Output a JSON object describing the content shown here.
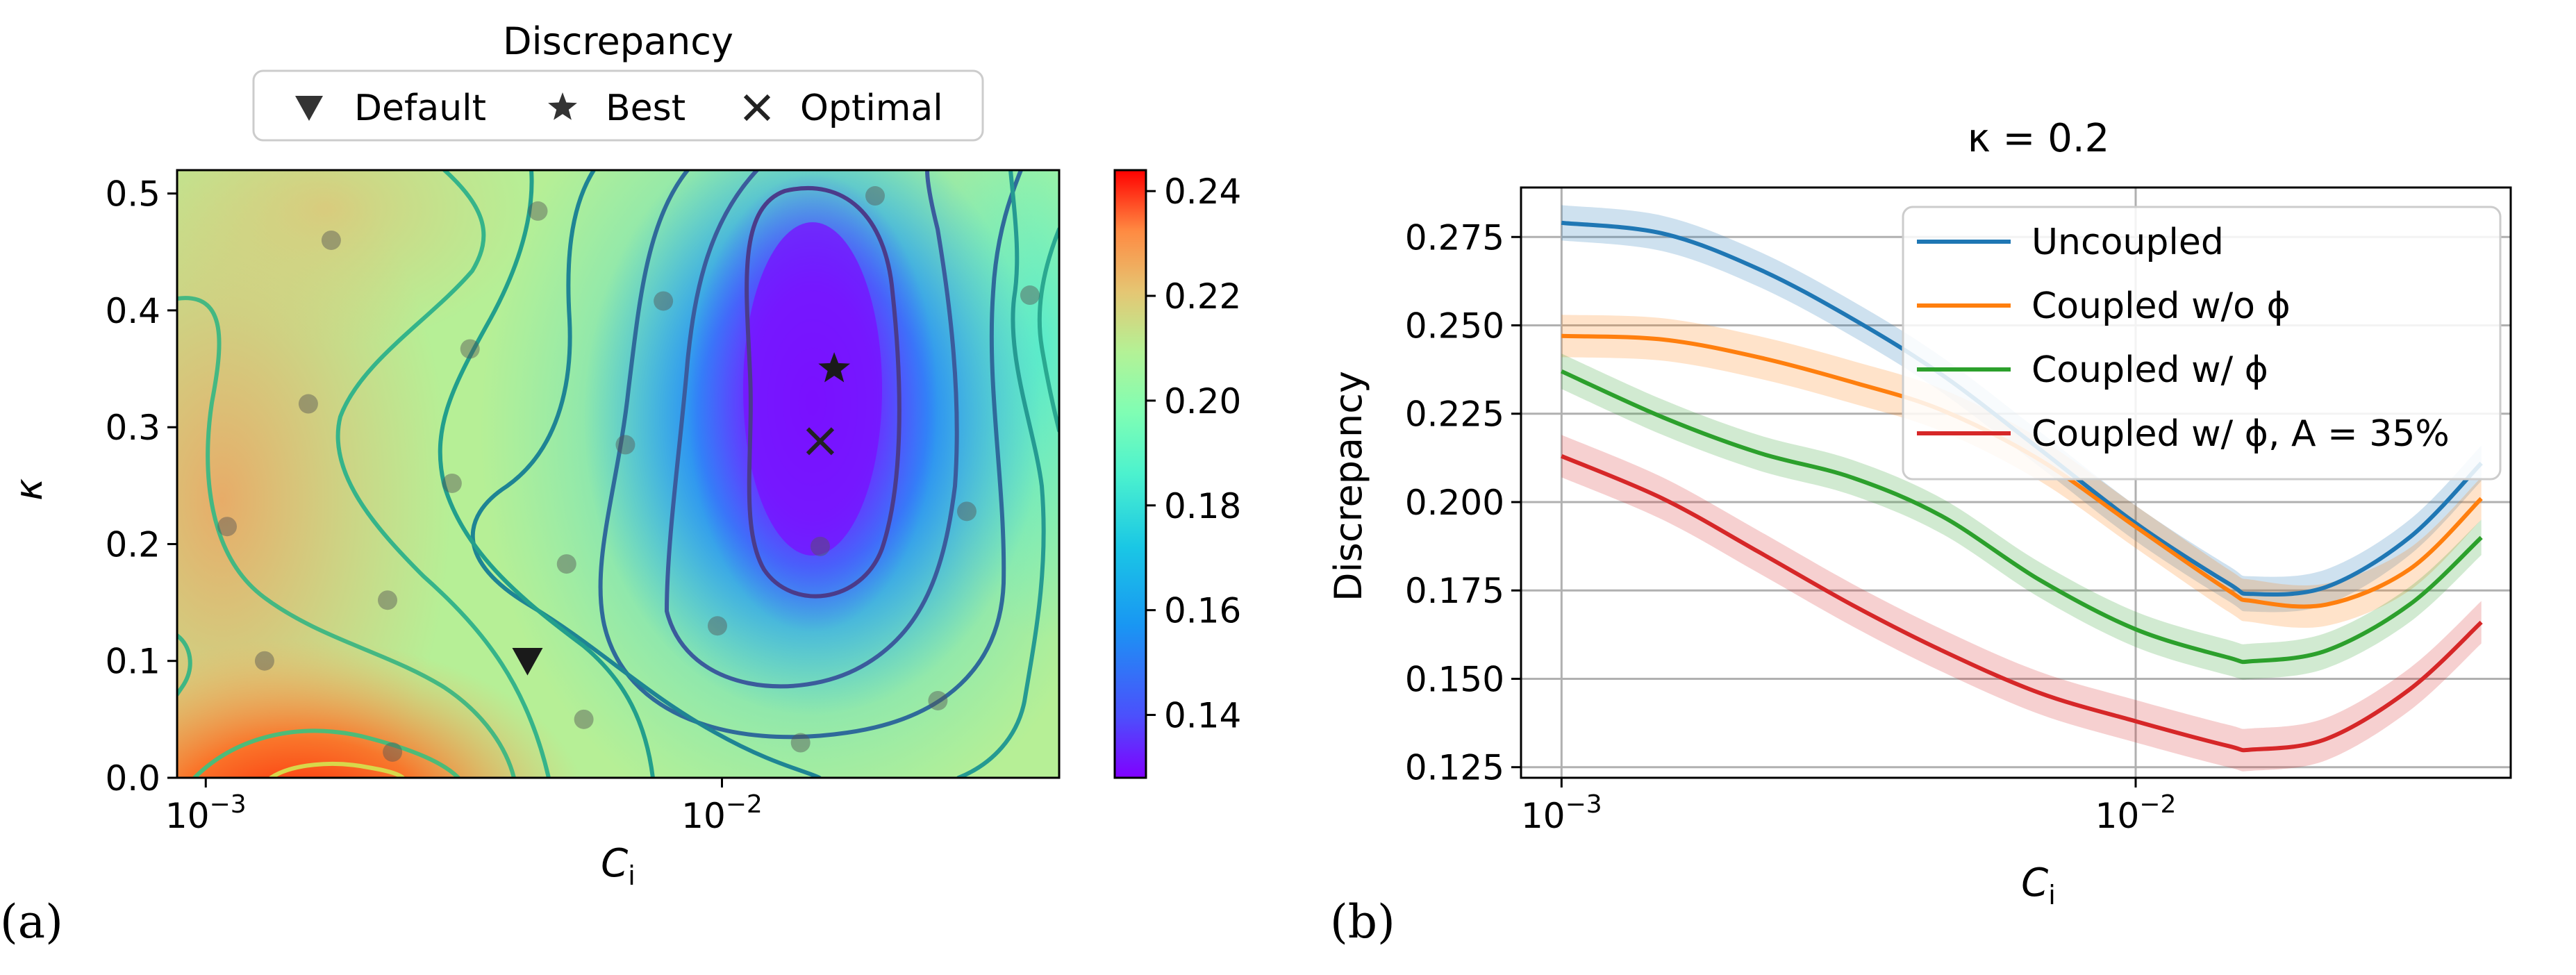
{
  "chart_data": [
    {
      "panel": "(a)",
      "type": "heatmap",
      "title": "",
      "xlabel": "C_i",
      "ylabel": "κ",
      "xscale": "log",
      "xlim": [
        0.00088,
        0.045
      ],
      "ylim": [
        0.0,
        0.52
      ],
      "xticks": [
        {
          "value": 0.001,
          "base": "10",
          "exp": "−3"
        },
        {
          "value": 0.01,
          "base": "10",
          "exp": "−2"
        }
      ],
      "yticks": [
        0.0,
        0.1,
        0.2,
        0.3,
        0.4,
        0.5
      ],
      "ytick_labels": [
        "0.0",
        "0.1",
        "0.2",
        "0.3",
        "0.4",
        "0.5"
      ],
      "colorbar": {
        "label": "Discrepancy",
        "range": [
          0.128,
          0.244
        ],
        "ticks": [
          0.14,
          0.16,
          0.18,
          0.2,
          0.22,
          0.24
        ],
        "tick_labels": [
          "0.14",
          "0.16",
          "0.18",
          "0.20",
          "0.22",
          "0.24"
        ],
        "colormap": "rainbow"
      },
      "legend": {
        "title": "Discrepancy",
        "placement": "top-center",
        "entries": [
          {
            "label": "Default",
            "marker": "triangle-down"
          },
          {
            "label": "Best",
            "marker": "star"
          },
          {
            "label": "Optimal",
            "marker": "x"
          }
        ]
      },
      "markers": {
        "default": {
          "x": 0.0042,
          "y": 0.1
        },
        "best": {
          "x": 0.0165,
          "y": 0.35
        },
        "optimal": {
          "x": 0.0155,
          "y": 0.288
        }
      },
      "sample_points": [
        {
          "x": 0.00175,
          "y": 0.46
        },
        {
          "x": 0.00158,
          "y": 0.32
        },
        {
          "x": 0.0011,
          "y": 0.215
        },
        {
          "x": 0.0013,
          "y": 0.1
        },
        {
          "x": 0.00225,
          "y": 0.152
        },
        {
          "x": 0.0023,
          "y": 0.022
        },
        {
          "x": 0.00325,
          "y": 0.367
        },
        {
          "x": 0.003,
          "y": 0.252
        },
        {
          "x": 0.0044,
          "y": 0.485
        },
        {
          "x": 0.005,
          "y": 0.183
        },
        {
          "x": 0.0054,
          "y": 0.05
        },
        {
          "x": 0.0065,
          "y": 0.285
        },
        {
          "x": 0.0077,
          "y": 0.408
        },
        {
          "x": 0.0098,
          "y": 0.13
        },
        {
          "x": 0.0142,
          "y": 0.03
        },
        {
          "x": 0.0155,
          "y": 0.198
        },
        {
          "x": 0.0198,
          "y": 0.498
        },
        {
          "x": 0.0262,
          "y": 0.066
        },
        {
          "x": 0.0298,
          "y": 0.228
        },
        {
          "x": 0.0395,
          "y": 0.413
        }
      ]
    },
    {
      "panel": "(b)",
      "type": "line",
      "title": "κ = 0.2",
      "xlabel": "C_i",
      "ylabel": "Discrepancy",
      "xscale": "log",
      "xlim": [
        0.00085,
        0.045
      ],
      "ylim": [
        0.122,
        0.289
      ],
      "xticks": [
        {
          "value": 0.001,
          "base": "10",
          "exp": "−3"
        },
        {
          "value": 0.01,
          "base": "10",
          "exp": "−2"
        }
      ],
      "yticks": [
        0.125,
        0.15,
        0.175,
        0.2,
        0.225,
        0.25,
        0.275
      ],
      "ytick_labels": [
        "0.125",
        "0.150",
        "0.175",
        "0.200",
        "0.225",
        "0.250",
        "0.275"
      ],
      "grid": true,
      "legend_placement": "top-right",
      "x": [
        0.001,
        0.0015,
        0.0022,
        0.0032,
        0.0046,
        0.0068,
        0.01,
        0.0145,
        0.016,
        0.0215,
        0.03,
        0.04
      ],
      "series": [
        {
          "name": "Uncoupled",
          "color": "#1f77b4",
          "values": [
            0.279,
            0.276,
            0.266,
            0.252,
            0.236,
            0.215,
            0.194,
            0.177,
            0.174,
            0.176,
            0.19,
            0.211
          ],
          "band": 0.005
        },
        {
          "name": "Coupled w/o ϕ",
          "color": "#ff7f0e",
          "values": [
            0.247,
            0.246,
            0.241,
            0.234,
            0.226,
            0.212,
            0.193,
            0.175,
            0.172,
            0.171,
            0.181,
            0.201
          ],
          "band": 0.006
        },
        {
          "name": "Coupled w/ ϕ",
          "color": "#2ca02c",
          "values": [
            0.237,
            0.224,
            0.214,
            0.207,
            0.196,
            0.178,
            0.164,
            0.156,
            0.155,
            0.158,
            0.171,
            0.19
          ],
          "band": 0.005
        },
        {
          "name": "Coupled w/ ϕ, A = 35%",
          "color": "#d62728",
          "values": [
            0.213,
            0.201,
            0.186,
            0.171,
            0.158,
            0.146,
            0.138,
            0.131,
            0.13,
            0.133,
            0.147,
            0.166
          ],
          "band": 0.006
        }
      ]
    }
  ],
  "labels": {
    "panel_a": "(a)",
    "panel_b": "(b)",
    "xlabel_main": "C",
    "xlabel_sub": "i"
  }
}
